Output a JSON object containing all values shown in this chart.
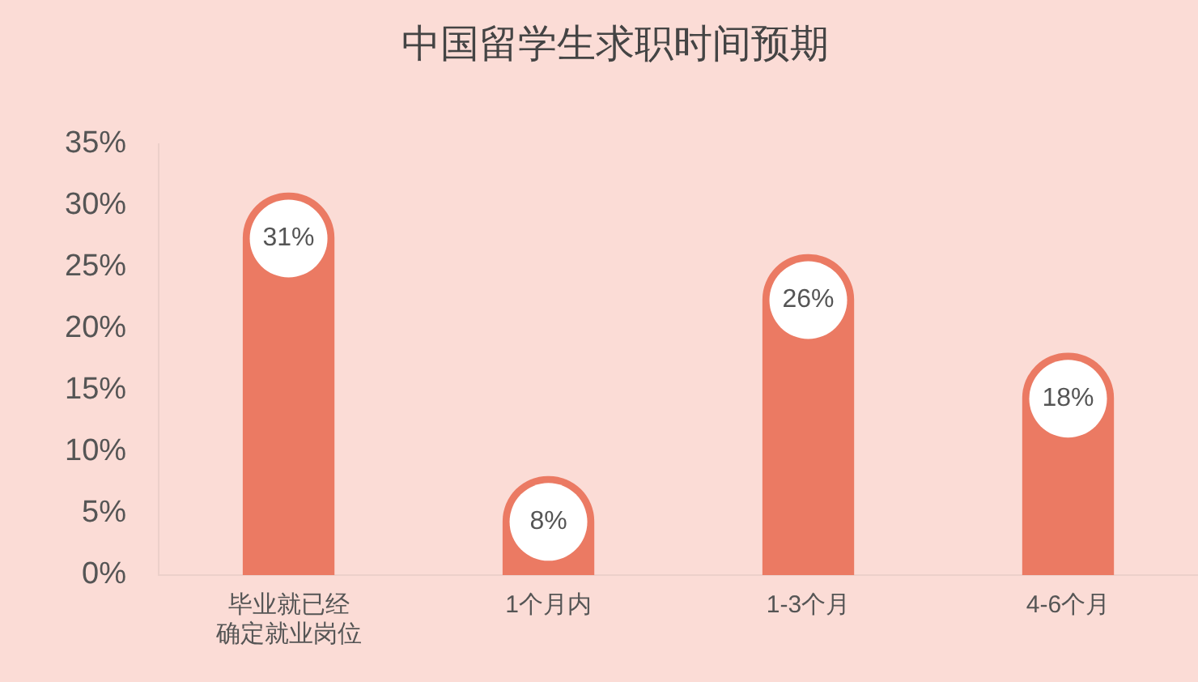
{
  "chart_data": {
    "type": "bar",
    "title": "中国留学生求职时间预期",
    "categories": [
      "毕业就已经确定就业岗位",
      "1个月内",
      "1-3个月",
      "4-6个月"
    ],
    "values": [
      31,
      8,
      26,
      18
    ],
    "color": "#eb7a63",
    "ylim": [
      0,
      35
    ],
    "yticks": [
      {
        "value": 0,
        "label": "0%"
      },
      {
        "value": 5,
        "label": "5%"
      },
      {
        "value": 10,
        "label": "10%"
      },
      {
        "value": 15,
        "label": "15%"
      },
      {
        "value": 20,
        "label": "20%"
      },
      {
        "value": 25,
        "label": "25%"
      },
      {
        "value": 30,
        "label": "30%"
      },
      {
        "value": 35,
        "label": "35%"
      }
    ],
    "value_labels": [
      "31%",
      "8%",
      "26%",
      "18%"
    ],
    "grid": false,
    "legend": false
  }
}
